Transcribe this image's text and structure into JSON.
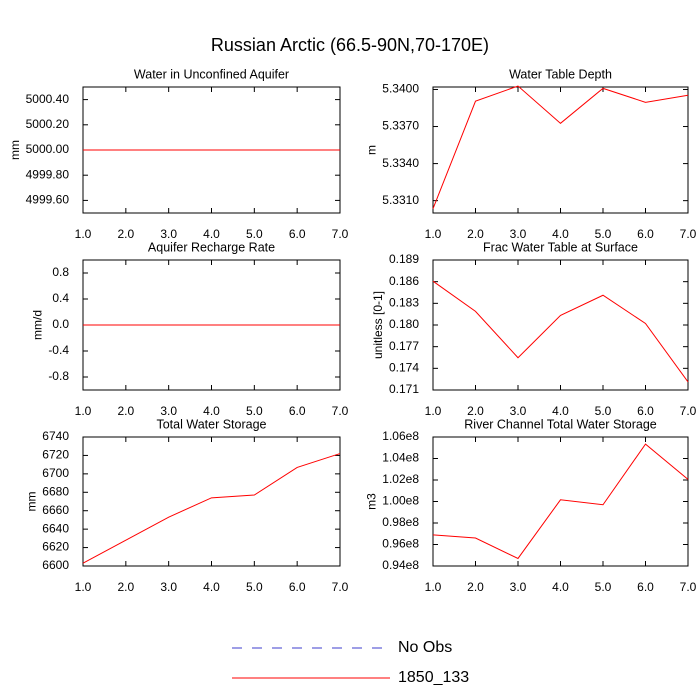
{
  "title": "Russian Arctic (66.5-90N,70-170E)",
  "legend": [
    {
      "name": "No Obs",
      "color": "#3c3ccc",
      "dashed": true
    },
    {
      "name": "1850_133",
      "color": "#ff0000",
      "dashed": false
    }
  ],
  "chart_data": [
    {
      "type": "line",
      "title": "Water in Unconfined Aquifer",
      "y_label": "mm",
      "x": [
        1,
        2,
        3,
        4,
        5,
        6,
        7
      ],
      "xlim": [
        1,
        7
      ],
      "xticks": [
        {
          "value": 1,
          "label": "1.0"
        },
        {
          "value": 2,
          "label": "2.0"
        },
        {
          "value": 3,
          "label": "3.0"
        },
        {
          "value": 4,
          "label": "4.0"
        },
        {
          "value": 5,
          "label": "5.0"
        },
        {
          "value": 6,
          "label": "6.0"
        },
        {
          "value": 7,
          "label": "7.0"
        }
      ],
      "ylim": [
        4999.5,
        5000.5
      ],
      "yticks": [
        {
          "value": 4999.6,
          "label": "4999.60"
        },
        {
          "value": 4999.8,
          "label": "4999.80"
        },
        {
          "value": 5000,
          "label": "5000.00"
        },
        {
          "value": 5000.2,
          "label": "5000.20"
        },
        {
          "value": 5000.4,
          "label": "5000.40"
        }
      ],
      "series": [
        {
          "name": "1850_133",
          "color": "#ff0000",
          "values": [
            5000,
            5000,
            5000,
            5000,
            5000,
            5000,
            5000
          ]
        }
      ]
    },
    {
      "type": "line",
      "title": "Water Table Depth",
      "y_label": "m",
      "x": [
        1,
        2,
        3,
        4,
        5,
        6,
        7
      ],
      "xlim": [
        1,
        7
      ],
      "xticks": [
        {
          "value": 1,
          "label": "1.0"
        },
        {
          "value": 2,
          "label": "2.0"
        },
        {
          "value": 3,
          "label": "3.0"
        },
        {
          "value": 4,
          "label": "4.0"
        },
        {
          "value": 5,
          "label": "5.0"
        },
        {
          "value": 6,
          "label": "6.0"
        },
        {
          "value": 7,
          "label": "7.0"
        }
      ],
      "ylim": [
        5.33,
        5.3402
      ],
      "yticks": [
        {
          "value": 5.331,
          "label": "5.3310"
        },
        {
          "value": 5.334,
          "label": "5.3340"
        },
        {
          "value": 5.337,
          "label": "5.3370"
        },
        {
          "value": 5.34,
          "label": "5.3400"
        }
      ],
      "series": [
        {
          "name": "1850_133",
          "color": "#ff0000",
          "values": [
            5.33035,
            5.33905,
            5.34028,
            5.33726,
            5.34009,
            5.33896,
            5.33953
          ]
        }
      ]
    },
    {
      "type": "line",
      "title": "Aquifer Recharge Rate",
      "y_label": "mm/d",
      "x": [
        1,
        2,
        3,
        4,
        5,
        6,
        7
      ],
      "xlim": [
        1,
        7
      ],
      "xticks": [
        {
          "value": 1,
          "label": "1.0"
        },
        {
          "value": 2,
          "label": "2.0"
        },
        {
          "value": 3,
          "label": "3.0"
        },
        {
          "value": 4,
          "label": "4.0"
        },
        {
          "value": 5,
          "label": "5.0"
        },
        {
          "value": 6,
          "label": "6.0"
        },
        {
          "value": 7,
          "label": "7.0"
        }
      ],
      "ylim": [
        -1,
        1
      ],
      "yticks": [
        -0.8,
        -0.4,
        {
          "value": 0,
          "label": "0.0"
        },
        0.4,
        0.8
      ],
      "series": [
        {
          "name": "1850_133",
          "color": "#ff0000",
          "values": [
            0,
            0,
            0,
            0,
            0,
            0,
            0
          ]
        }
      ]
    },
    {
      "type": "line",
      "title": "Frac Water Table at Surface",
      "y_label": "unitless [0-1]",
      "x": [
        1,
        2,
        3,
        4,
        5,
        6,
        7
      ],
      "xlim": [
        1,
        7
      ],
      "xticks": [
        {
          "value": 1,
          "label": "1.0"
        },
        {
          "value": 2,
          "label": "2.0"
        },
        {
          "value": 3,
          "label": "3.0"
        },
        {
          "value": 4,
          "label": "4.0"
        },
        {
          "value": 5,
          "label": "5.0"
        },
        {
          "value": 6,
          "label": "6.0"
        },
        {
          "value": 7,
          "label": "7.0"
        }
      ],
      "ylim": [
        0.171,
        0.189
      ],
      "yticks": [
        0.171,
        0.174,
        0.177,
        {
          "value": 0.18,
          "label": "0.180"
        },
        0.183,
        0.186,
        0.189
      ],
      "series": [
        {
          "name": "1850_133",
          "color": "#ff0000",
          "values": [
            0.18607,
            0.18189,
            0.17547,
            0.18133,
            0.18412,
            0.18021,
            0.17212
          ]
        }
      ]
    },
    {
      "type": "line",
      "title": "Total Water Storage",
      "y_label": "mm",
      "x": [
        1,
        2,
        3,
        4,
        5,
        6,
        7
      ],
      "xlim": [
        1,
        7
      ],
      "xticks": [
        {
          "value": 1,
          "label": "1.0"
        },
        {
          "value": 2,
          "label": "2.0"
        },
        {
          "value": 3,
          "label": "3.0"
        },
        {
          "value": 4,
          "label": "4.0"
        },
        {
          "value": 5,
          "label": "5.0"
        },
        {
          "value": 6,
          "label": "6.0"
        },
        {
          "value": 7,
          "label": "7.0"
        }
      ],
      "ylim": [
        6600,
        6740
      ],
      "yticks": [
        6600,
        6620,
        6640,
        6660,
        6680,
        6700,
        6720,
        6740
      ],
      "series": [
        {
          "name": "1850_133",
          "color": "#ff0000",
          "values": [
            6603,
            6628,
            6653,
            6674,
            6677,
            6707,
            6722
          ]
        }
      ]
    },
    {
      "type": "line",
      "title": "River Channel Total Water Storage",
      "y_label": "m3",
      "x": [
        1,
        2,
        3,
        4,
        5,
        6,
        7
      ],
      "xlim": [
        1,
        7
      ],
      "xticks": [
        {
          "value": 1,
          "label": "1.0"
        },
        {
          "value": 2,
          "label": "2.0"
        },
        {
          "value": 3,
          "label": "3.0"
        },
        {
          "value": 4,
          "label": "4.0"
        },
        {
          "value": 5,
          "label": "5.0"
        },
        {
          "value": 6,
          "label": "6.0"
        },
        {
          "value": 7,
          "label": "7.0"
        }
      ],
      "ylim": [
        94000000,
        106000000
      ],
      "yticks": [
        {
          "value": 94000000,
          "label": "0.94e8"
        },
        {
          "value": 96000000,
          "label": "0.96e8"
        },
        {
          "value": 98000000,
          "label": "0.98e8"
        },
        {
          "value": 100000000,
          "label": "1.00e8"
        },
        {
          "value": 102000000,
          "label": "1.02e8"
        },
        {
          "value": 104000000,
          "label": "1.04e8"
        },
        {
          "value": 106000000,
          "label": "1.06e8"
        }
      ],
      "series": [
        {
          "name": "1850_133",
          "color": "#ff0000",
          "values": [
            96900000,
            96600000,
            94700000,
            100160000,
            99700000,
            105340000,
            102060000
          ]
        }
      ]
    }
  ]
}
